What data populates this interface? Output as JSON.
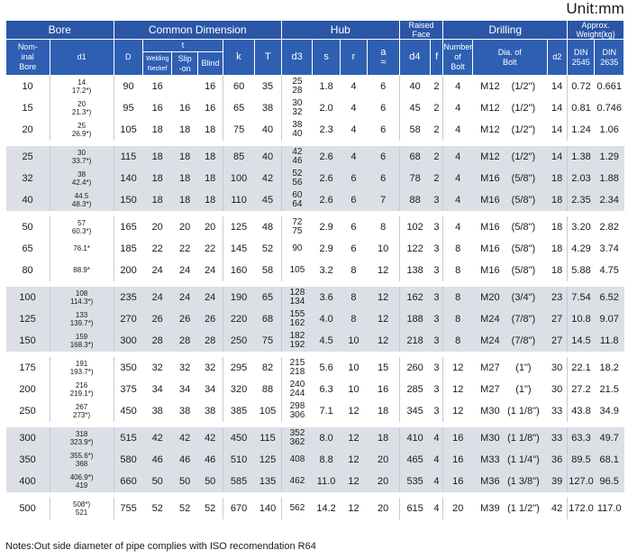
{
  "unit": "Unit:mm",
  "headers": {
    "bore": "Bore",
    "common": "Common Dimension",
    "hub": "Hub",
    "raised": "Raised Face",
    "drilling": "Drilling",
    "weight": "Approx. Weight(kg)",
    "nominal_bore": "Nom-\ninal\nBore",
    "d1": "d1",
    "D": "D",
    "t": "t",
    "welding": "Welding\nNeckef",
    "slipon": "Slip\n-on",
    "blind": "Blind",
    "k": "k",
    "T": "T",
    "d3": "d3",
    "s": "s",
    "r": "r",
    "a": "a\n≈",
    "d4": "d4",
    "f": "f",
    "num_bolt": "Number\nof\nBolt",
    "dia_bolt": "Dia. of\nBolt",
    "d2": "d2",
    "din2545": "DIN\n2545",
    "din2635": "DIN\n2635"
  },
  "groups": [
    [
      {
        "bore": "10",
        "d1": "14\n17.2*)",
        "D": "90",
        "tw": "16",
        "ts": "",
        "tb": "16",
        "k": "60",
        "T": "35",
        "d3": "25\n28",
        "s": "1.8",
        "r": "4",
        "a": "6",
        "d4": "40",
        "f": "2",
        "n": "4",
        "bolt": "M12",
        "inch": "(1/2\")",
        "d2": "14",
        "w1": "0.72",
        "w2": "0.661"
      },
      {
        "bore": "15",
        "d1": "20\n21.3*)",
        "D": "95",
        "tw": "16",
        "ts": "16",
        "tb": "16",
        "k": "65",
        "T": "38",
        "d3": "30\n32",
        "s": "2.0",
        "r": "4",
        "a": "6",
        "d4": "45",
        "f": "2",
        "n": "4",
        "bolt": "M12",
        "inch": "(1/2\")",
        "d2": "14",
        "w1": "0.81",
        "w2": "0.746"
      },
      {
        "bore": "20",
        "d1": "25\n26.9*)",
        "D": "105",
        "tw": "18",
        "ts": "18",
        "tb": "18",
        "k": "75",
        "T": "40",
        "d3": "38\n40",
        "s": "2.3",
        "r": "4",
        "a": "6",
        "d4": "58",
        "f": "2",
        "n": "4",
        "bolt": "M12",
        "inch": "(1/2\")",
        "d2": "14",
        "w1": "1.24",
        "w2": "1.06"
      }
    ],
    [
      {
        "bore": "25",
        "d1": "30\n33.7*)",
        "D": "115",
        "tw": "18",
        "ts": "18",
        "tb": "18",
        "k": "85",
        "T": "40",
        "d3": "42\n46",
        "s": "2.6",
        "r": "4",
        "a": "6",
        "d4": "68",
        "f": "2",
        "n": "4",
        "bolt": "M12",
        "inch": "(1/2\")",
        "d2": "14",
        "w1": "1.38",
        "w2": "1.29"
      },
      {
        "bore": "32",
        "d1": "38\n42.4*)",
        "D": "140",
        "tw": "18",
        "ts": "18",
        "tb": "18",
        "k": "100",
        "T": "42",
        "d3": "52\n56",
        "s": "2.6",
        "r": "6",
        "a": "6",
        "d4": "78",
        "f": "2",
        "n": "4",
        "bolt": "M16",
        "inch": "(5/8\")",
        "d2": "18",
        "w1": "2.03",
        "w2": "1.88"
      },
      {
        "bore": "40",
        "d1": "44.5\n48.3*)",
        "D": "150",
        "tw": "18",
        "ts": "18",
        "tb": "18",
        "k": "110",
        "T": "45",
        "d3": "60\n64",
        "s": "2.6",
        "r": "6",
        "a": "7",
        "d4": "88",
        "f": "3",
        "n": "4",
        "bolt": "M16",
        "inch": "(5/8\")",
        "d2": "18",
        "w1": "2.35",
        "w2": "2.34"
      }
    ],
    [
      {
        "bore": "50",
        "d1": "57\n60.3*)",
        "D": "165",
        "tw": "20",
        "ts": "20",
        "tb": "20",
        "k": "125",
        "T": "48",
        "d3": "72\n75",
        "s": "2.9",
        "r": "6",
        "a": "8",
        "d4": "102",
        "f": "3",
        "n": "4",
        "bolt": "M16",
        "inch": "(5/8\")",
        "d2": "18",
        "w1": "3.20",
        "w2": "2.82"
      },
      {
        "bore": "65",
        "d1": "76.1*",
        "D": "185",
        "tw": "22",
        "ts": "22",
        "tb": "22",
        "k": "145",
        "T": "52",
        "d3": "90",
        "s": "2.9",
        "r": "6",
        "a": "10",
        "d4": "122",
        "f": "3",
        "n": "8",
        "bolt": "M16",
        "inch": "(5/8\")",
        "d2": "18",
        "w1": "4.29",
        "w2": "3.74"
      },
      {
        "bore": "80",
        "d1": "88.9*",
        "D": "200",
        "tw": "24",
        "ts": "24",
        "tb": "24",
        "k": "160",
        "T": "58",
        "d3": "105",
        "s": "3.2",
        "r": "8",
        "a": "12",
        "d4": "138",
        "f": "3",
        "n": "8",
        "bolt": "M16",
        "inch": "(5/8\")",
        "d2": "18",
        "w1": "5.88",
        "w2": "4.75"
      }
    ],
    [
      {
        "bore": "100",
        "d1": "108\n114.3*)",
        "D": "235",
        "tw": "24",
        "ts": "24",
        "tb": "24",
        "k": "190",
        "T": "65",
        "d3": "128\n134",
        "s": "3.6",
        "r": "8",
        "a": "12",
        "d4": "162",
        "f": "3",
        "n": "8",
        "bolt": "M20",
        "inch": "(3/4\")",
        "d2": "23",
        "w1": "7.54",
        "w2": "6.52"
      },
      {
        "bore": "125",
        "d1": "133\n139.7*)",
        "D": "270",
        "tw": "26",
        "ts": "26",
        "tb": "26",
        "k": "220",
        "T": "68",
        "d3": "155\n162",
        "s": "4.0",
        "r": "8",
        "a": "12",
        "d4": "188",
        "f": "3",
        "n": "8",
        "bolt": "M24",
        "inch": "(7/8\")",
        "d2": "27",
        "w1": "10.8",
        "w2": "9.07"
      },
      {
        "bore": "150",
        "d1": "159\n168.3*)",
        "D": "300",
        "tw": "28",
        "ts": "28",
        "tb": "28",
        "k": "250",
        "T": "75",
        "d3": "182\n192",
        "s": "4.5",
        "r": "10",
        "a": "12",
        "d4": "218",
        "f": "3",
        "n": "8",
        "bolt": "M24",
        "inch": "(7/8\")",
        "d2": "27",
        "w1": "14.5",
        "w2": "11.8"
      }
    ],
    [
      {
        "bore": "175",
        "d1": "191\n193.7*)",
        "D": "350",
        "tw": "32",
        "ts": "32",
        "tb": "32",
        "k": "295",
        "T": "82",
        "d3": "215\n218",
        "s": "5.6",
        "r": "10",
        "a": "15",
        "d4": "260",
        "f": "3",
        "n": "12",
        "bolt": "M27",
        "inch": "(1\")",
        "d2": "30",
        "w1": "22.1",
        "w2": "18.2"
      },
      {
        "bore": "200",
        "d1": "216\n219.1*)",
        "D": "375",
        "tw": "34",
        "ts": "34",
        "tb": "34",
        "k": "320",
        "T": "88",
        "d3": "240\n244",
        "s": "6.3",
        "r": "10",
        "a": "16",
        "d4": "285",
        "f": "3",
        "n": "12",
        "bolt": "M27",
        "inch": "(1\")",
        "d2": "30",
        "w1": "27.2",
        "w2": "21.5"
      },
      {
        "bore": "250",
        "d1": "267\n273*)",
        "D": "450",
        "tw": "38",
        "ts": "38",
        "tb": "38",
        "k": "385",
        "T": "105",
        "d3": "298\n306",
        "s": "7.1",
        "r": "12",
        "a": "18",
        "d4": "345",
        "f": "3",
        "n": "12",
        "bolt": "M30",
        "inch": "(1 1/8\")",
        "d2": "33",
        "w1": "43.8",
        "w2": "34.9"
      }
    ],
    [
      {
        "bore": "300",
        "d1": "318\n323.9*)",
        "D": "515",
        "tw": "42",
        "ts": "42",
        "tb": "42",
        "k": "450",
        "T": "115",
        "d3": "352\n362",
        "s": "8.0",
        "r": "12",
        "a": "18",
        "d4": "410",
        "f": "4",
        "n": "16",
        "bolt": "M30",
        "inch": "(1 1/8\")",
        "d2": "33",
        "w1": "63.3",
        "w2": "49.7"
      },
      {
        "bore": "350",
        "d1": "355.6*)\n368",
        "D": "580",
        "tw": "46",
        "ts": "46",
        "tb": "46",
        "k": "510",
        "T": "125",
        "d3": "408",
        "s": "8.8",
        "r": "12",
        "a": "20",
        "d4": "465",
        "f": "4",
        "n": "16",
        "bolt": "M33",
        "inch": "(1 1/4\")",
        "d2": "36",
        "w1": "89.5",
        "w2": "68.1"
      },
      {
        "bore": "400",
        "d1": "406.9*)\n419",
        "D": "660",
        "tw": "50",
        "ts": "50",
        "tb": "50",
        "k": "585",
        "T": "135",
        "d3": "462",
        "s": "11.0",
        "r": "12",
        "a": "20",
        "d4": "535",
        "f": "4",
        "n": "16",
        "bolt": "M36",
        "inch": "(1 3/8\")",
        "d2": "39",
        "w1": "127.0",
        "w2": "96.5"
      }
    ],
    [
      {
        "bore": "500",
        "d1": "508*)\n521",
        "D": "755",
        "tw": "52",
        "ts": "52",
        "tb": "52",
        "k": "670",
        "T": "140",
        "d3": "562",
        "s": "14.2",
        "r": "12",
        "a": "20",
        "d4": "615",
        "f": "4",
        "n": "20",
        "bolt": "M39",
        "inch": "(1 1/2\")",
        "d2": "42",
        "w1": "172.0",
        "w2": "117.0"
      }
    ]
  ],
  "note": "Notes:Out side diameter of pipe complies with ISO recomendation R64"
}
